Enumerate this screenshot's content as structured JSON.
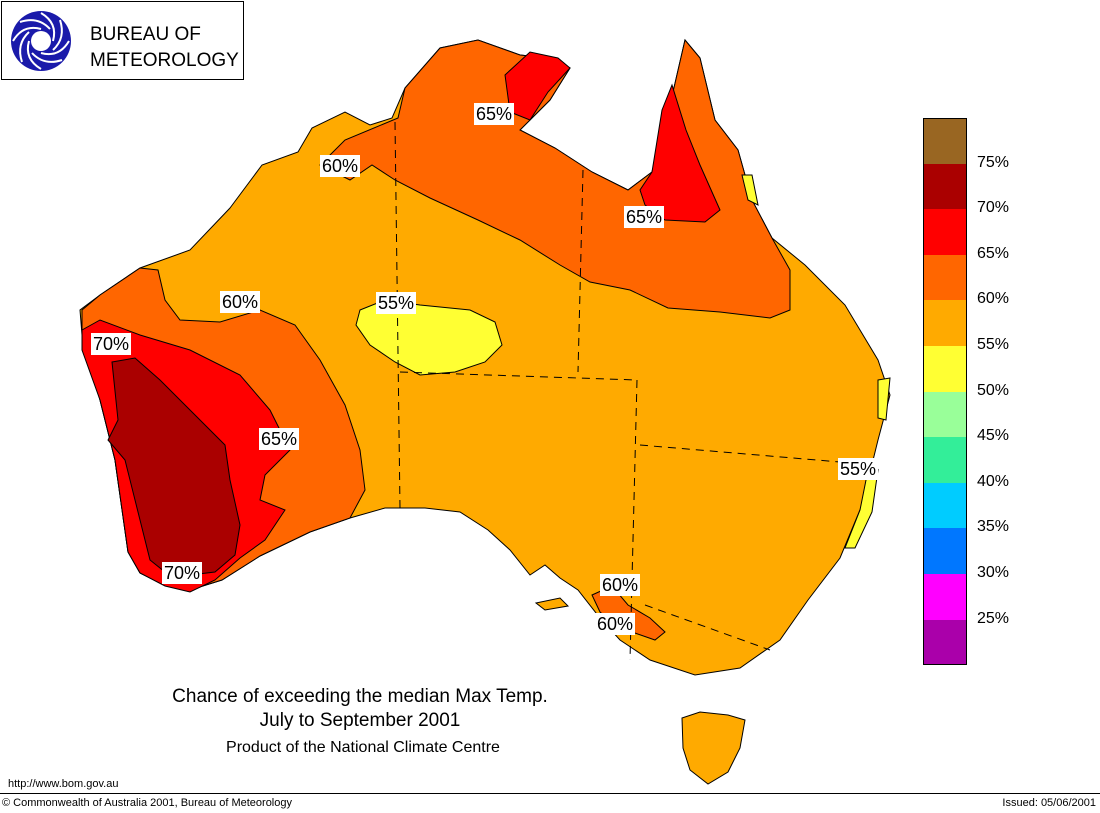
{
  "logo": {
    "line1": "BUREAU OF",
    "line2": "METEOROLOGY",
    "icon": "bom-swirl-logo"
  },
  "caption": {
    "title": "Chance of exceeding the median Max Temp.",
    "period": "July to September 2001",
    "product": "Product of the National Climate Centre"
  },
  "legend": {
    "colors": [
      "#996622",
      "#aa0000",
      "#ff0000",
      "#ff6600",
      "#ffaa00",
      "#ffff33",
      "#99ff99",
      "#33ee99",
      "#00ccff",
      "#0077ff",
      "#ff00ff",
      "#aa00aa"
    ],
    "labels": [
      "75%",
      "70%",
      "65%",
      "60%",
      "55%",
      "50%",
      "45%",
      "40%",
      "35%",
      "30%",
      "25%"
    ]
  },
  "contour_labels": [
    "65%",
    "60%",
    "65%",
    "60%",
    "55%",
    "70%",
    "65%",
    "55%",
    "70%",
    "60%",
    "60%"
  ],
  "footer": {
    "url": "http://www.bom.gov.au",
    "copyright": "© Commonwealth of Australia 2001, Bureau of Meteorology",
    "issued": "Issued: 05/06/2001"
  }
}
